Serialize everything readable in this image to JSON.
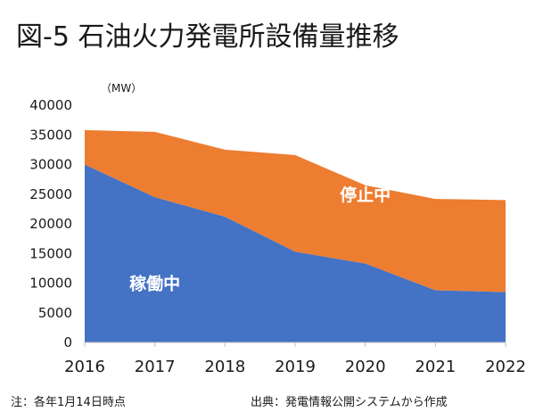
{
  "chart_data": {
    "type": "area",
    "title": "図-5 石油火力発電所設備量推移",
    "unit_label": "（MW）",
    "categories": [
      "2016",
      "2017",
      "2018",
      "2019",
      "2020",
      "2021",
      "2022"
    ],
    "series": [
      {
        "name": "稼働中",
        "values": [
          30000,
          24500,
          21200,
          15300,
          13300,
          8800,
          8500
        ],
        "color": "#4472C4"
      },
      {
        "name": "停止中",
        "values": [
          5800,
          11000,
          11300,
          16300,
          13200,
          15400,
          15500
        ],
        "color": "#ED7D31"
      }
    ],
    "stacked": true,
    "ylim": [
      0,
      40000
    ],
    "yticks": [
      0,
      5000,
      10000,
      15000,
      20000,
      25000,
      30000,
      35000,
      40000
    ],
    "annotations": [
      {
        "text": "稼働中",
        "x_index": 1,
        "y": 10000
      },
      {
        "text": "停止中",
        "x_index": 4,
        "y": 25000
      }
    ],
    "note": "注：各年1月14日時点",
    "source": "出典：発電情報公開システムから作成"
  }
}
